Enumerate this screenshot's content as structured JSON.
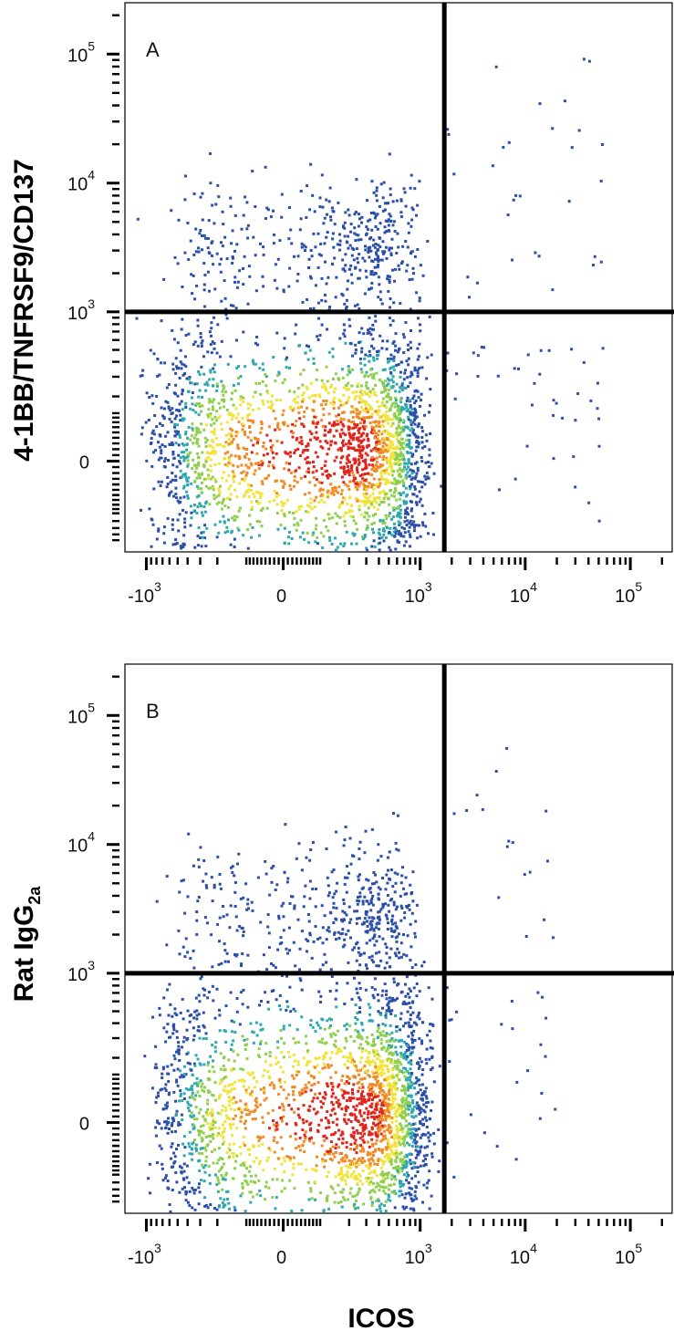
{
  "figure": {
    "xlabel": "ICOS",
    "colors": {
      "axis": "#000000",
      "density_low": "#2b4fa8",
      "density_mid": "#2fa8b0",
      "density_high": "#f2e33a",
      "density_peak": "#e0241c"
    }
  },
  "chart_data": [
    {
      "type": "scatter",
      "subtype": "flow-cytometry density dot plot (biexponential axes)",
      "panel": "A",
      "ylabel": "4-1BB/TNFRSF9/CD137",
      "ylabel_sub": "",
      "xlabel": "ICOS",
      "x_ticks": [
        {
          "base": "-10",
          "exp": "3"
        },
        {
          "base": "0",
          "exp": ""
        },
        {
          "base": "10",
          "exp": "3"
        },
        {
          "base": "10",
          "exp": "4"
        },
        {
          "base": "10",
          "exp": "5"
        }
      ],
      "y_ticks": [
        {
          "base": "0",
          "exp": ""
        },
        {
          "base": "10",
          "exp": "3"
        },
        {
          "base": "10",
          "exp": "4"
        },
        {
          "base": "10",
          "exp": "5"
        }
      ],
      "quadrant_gate": {
        "x": 1700,
        "y": 1000
      },
      "populations": [
        {
          "name": "main",
          "center": [
            150,
            30
          ],
          "spread_x": 420,
          "spread_y_log": 0.7,
          "count": 2600
        },
        {
          "name": "upper-left",
          "center": [
            200,
            3500
          ],
          "spread_x": 300,
          "spread_y_log": 0.35,
          "count": 420
        },
        {
          "name": "sparse-right",
          "x_range": [
            1700,
            60000
          ],
          "y_range": [
            -200,
            100000
          ],
          "count": 70
        }
      ],
      "grid": false,
      "legend": "none"
    },
    {
      "type": "scatter",
      "subtype": "flow-cytometry density dot plot (biexponential axes)",
      "panel": "B",
      "ylabel": "Rat IgG",
      "ylabel_sub": "2a",
      "xlabel": "ICOS",
      "x_ticks": [
        {
          "base": "-10",
          "exp": "3"
        },
        {
          "base": "0",
          "exp": ""
        },
        {
          "base": "10",
          "exp": "3"
        },
        {
          "base": "10",
          "exp": "4"
        },
        {
          "base": "10",
          "exp": "5"
        }
      ],
      "y_ticks": [
        {
          "base": "0",
          "exp": ""
        },
        {
          "base": "10",
          "exp": "3"
        },
        {
          "base": "10",
          "exp": "4"
        },
        {
          "base": "10",
          "exp": "5"
        }
      ],
      "quadrant_gate": {
        "x": 1700,
        "y": 1000
      },
      "populations": [
        {
          "name": "main",
          "center": [
            200,
            20
          ],
          "spread_x": 430,
          "spread_y_log": 0.75,
          "count": 2700
        },
        {
          "name": "upper-left",
          "center": [
            200,
            3000
          ],
          "spread_x": 300,
          "spread_y_log": 0.4,
          "count": 450
        },
        {
          "name": "sparse-right",
          "x_range": [
            1700,
            20000
          ],
          "y_range": [
            -100,
            60000
          ],
          "count": 40
        }
      ],
      "grid": false,
      "legend": "none"
    }
  ]
}
